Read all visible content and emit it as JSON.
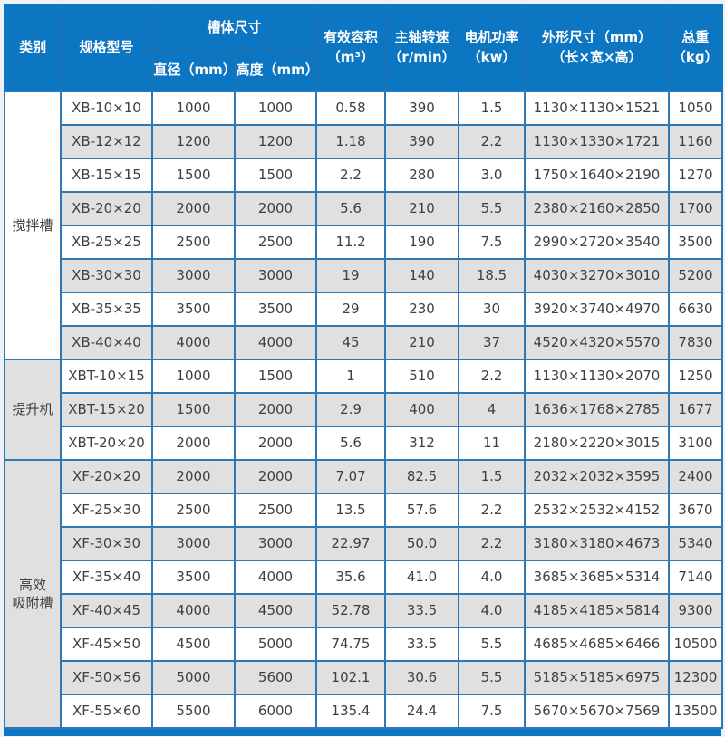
{
  "colors": {
    "header_bg": "#0d76c2",
    "header_text": "#ffffff",
    "header_border": "#2a72ad",
    "cell_border": "#2e79b5",
    "row_bg": "#ffffff",
    "row_alt_bg": "#e0e0e0",
    "text": "#3f3f3f",
    "page_bg": "#edf1f7"
  },
  "table": {
    "headers": {
      "category": "类别",
      "model": "规格型号",
      "tank_size": "槽体尺寸",
      "diameter": "直径（mm）",
      "height": "高度（mm）",
      "volume": "有效容积\n（m³）",
      "speed": "主轴转速\n（r/min）",
      "power": "电机功率\n（kw）",
      "dimensions": "外形尺寸（mm）\n（长×宽×高）",
      "weight": "总重\n（kg）"
    },
    "groups": [
      {
        "category": "搅拌槽",
        "rows": [
          [
            "XB-10×10",
            "1000",
            "1000",
            "0.58",
            "390",
            "1.5",
            "1130×1130×1521",
            "1050"
          ],
          [
            "XB-12×12",
            "1200",
            "1200",
            "1.18",
            "390",
            "2.2",
            "1130×1330×1721",
            "1160"
          ],
          [
            "XB-15×15",
            "1500",
            "1500",
            "2.2",
            "280",
            "3.0",
            "1750×1640×2190",
            "1270"
          ],
          [
            "XB-20×20",
            "2000",
            "2000",
            "5.6",
            "210",
            "5.5",
            "2380×2160×2850",
            "1700"
          ],
          [
            "XB-25×25",
            "2500",
            "2500",
            "11.2",
            "190",
            "7.5",
            "2990×2720×3540",
            "3500"
          ],
          [
            "XB-30×30",
            "3000",
            "3000",
            "19",
            "140",
            "18.5",
            "4030×3270×3010",
            "5200"
          ],
          [
            "XB-35×35",
            "3500",
            "3500",
            "29",
            "230",
            "30",
            "3920×3740×4970",
            "6630"
          ],
          [
            "XB-40×40",
            "4000",
            "4000",
            "45",
            "210",
            "37",
            "4520×4320×5570",
            "7830"
          ]
        ]
      },
      {
        "category": "提升机",
        "rows": [
          [
            "XBT-10×15",
            "1000",
            "1500",
            "1",
            "510",
            "2.2",
            "1130×1130×2070",
            "1250"
          ],
          [
            "XBT-15×20",
            "1500",
            "2000",
            "2.9",
            "400",
            "4",
            "1636×1768×2785",
            "1677"
          ],
          [
            "XBT-20×20",
            "2000",
            "2000",
            "5.6",
            "312",
            "11",
            "2180×2220×3015",
            "3100"
          ]
        ]
      },
      {
        "category": "高效\n吸附槽",
        "rows": [
          [
            "XF-20×20",
            "2000",
            "2000",
            "7.07",
            "82.5",
            "1.5",
            "2032×2032×3595",
            "2400"
          ],
          [
            "XF-25×30",
            "2500",
            "2500",
            "13.5",
            "57.6",
            "2.2",
            "2532×2532×4152",
            "3670"
          ],
          [
            "XF-30×30",
            "3000",
            "3000",
            "22.97",
            "50.0",
            "2.2",
            "3180×3180×4673",
            "5340"
          ],
          [
            "XF-35×40",
            "3500",
            "4000",
            "35.6",
            "41.0",
            "4.0",
            "3685×3685×5314",
            "7140"
          ],
          [
            "XF-40×45",
            "4000",
            "4500",
            "52.78",
            "33.5",
            "4.0",
            "4185×4185×5814",
            "9300"
          ],
          [
            "XF-45×50",
            "4500",
            "5000",
            "74.75",
            "33.5",
            "5.5",
            "4685×4685×6466",
            "10500"
          ],
          [
            "XF-50×56",
            "5000",
            "5600",
            "102.1",
            "30.6",
            "5.5",
            "5185×5185×6975",
            "12300"
          ],
          [
            "XF-55×60",
            "5500",
            "6000",
            "135.4",
            "24.4",
            "7.5",
            "5670×5670×7569",
            "13500"
          ]
        ]
      }
    ]
  }
}
